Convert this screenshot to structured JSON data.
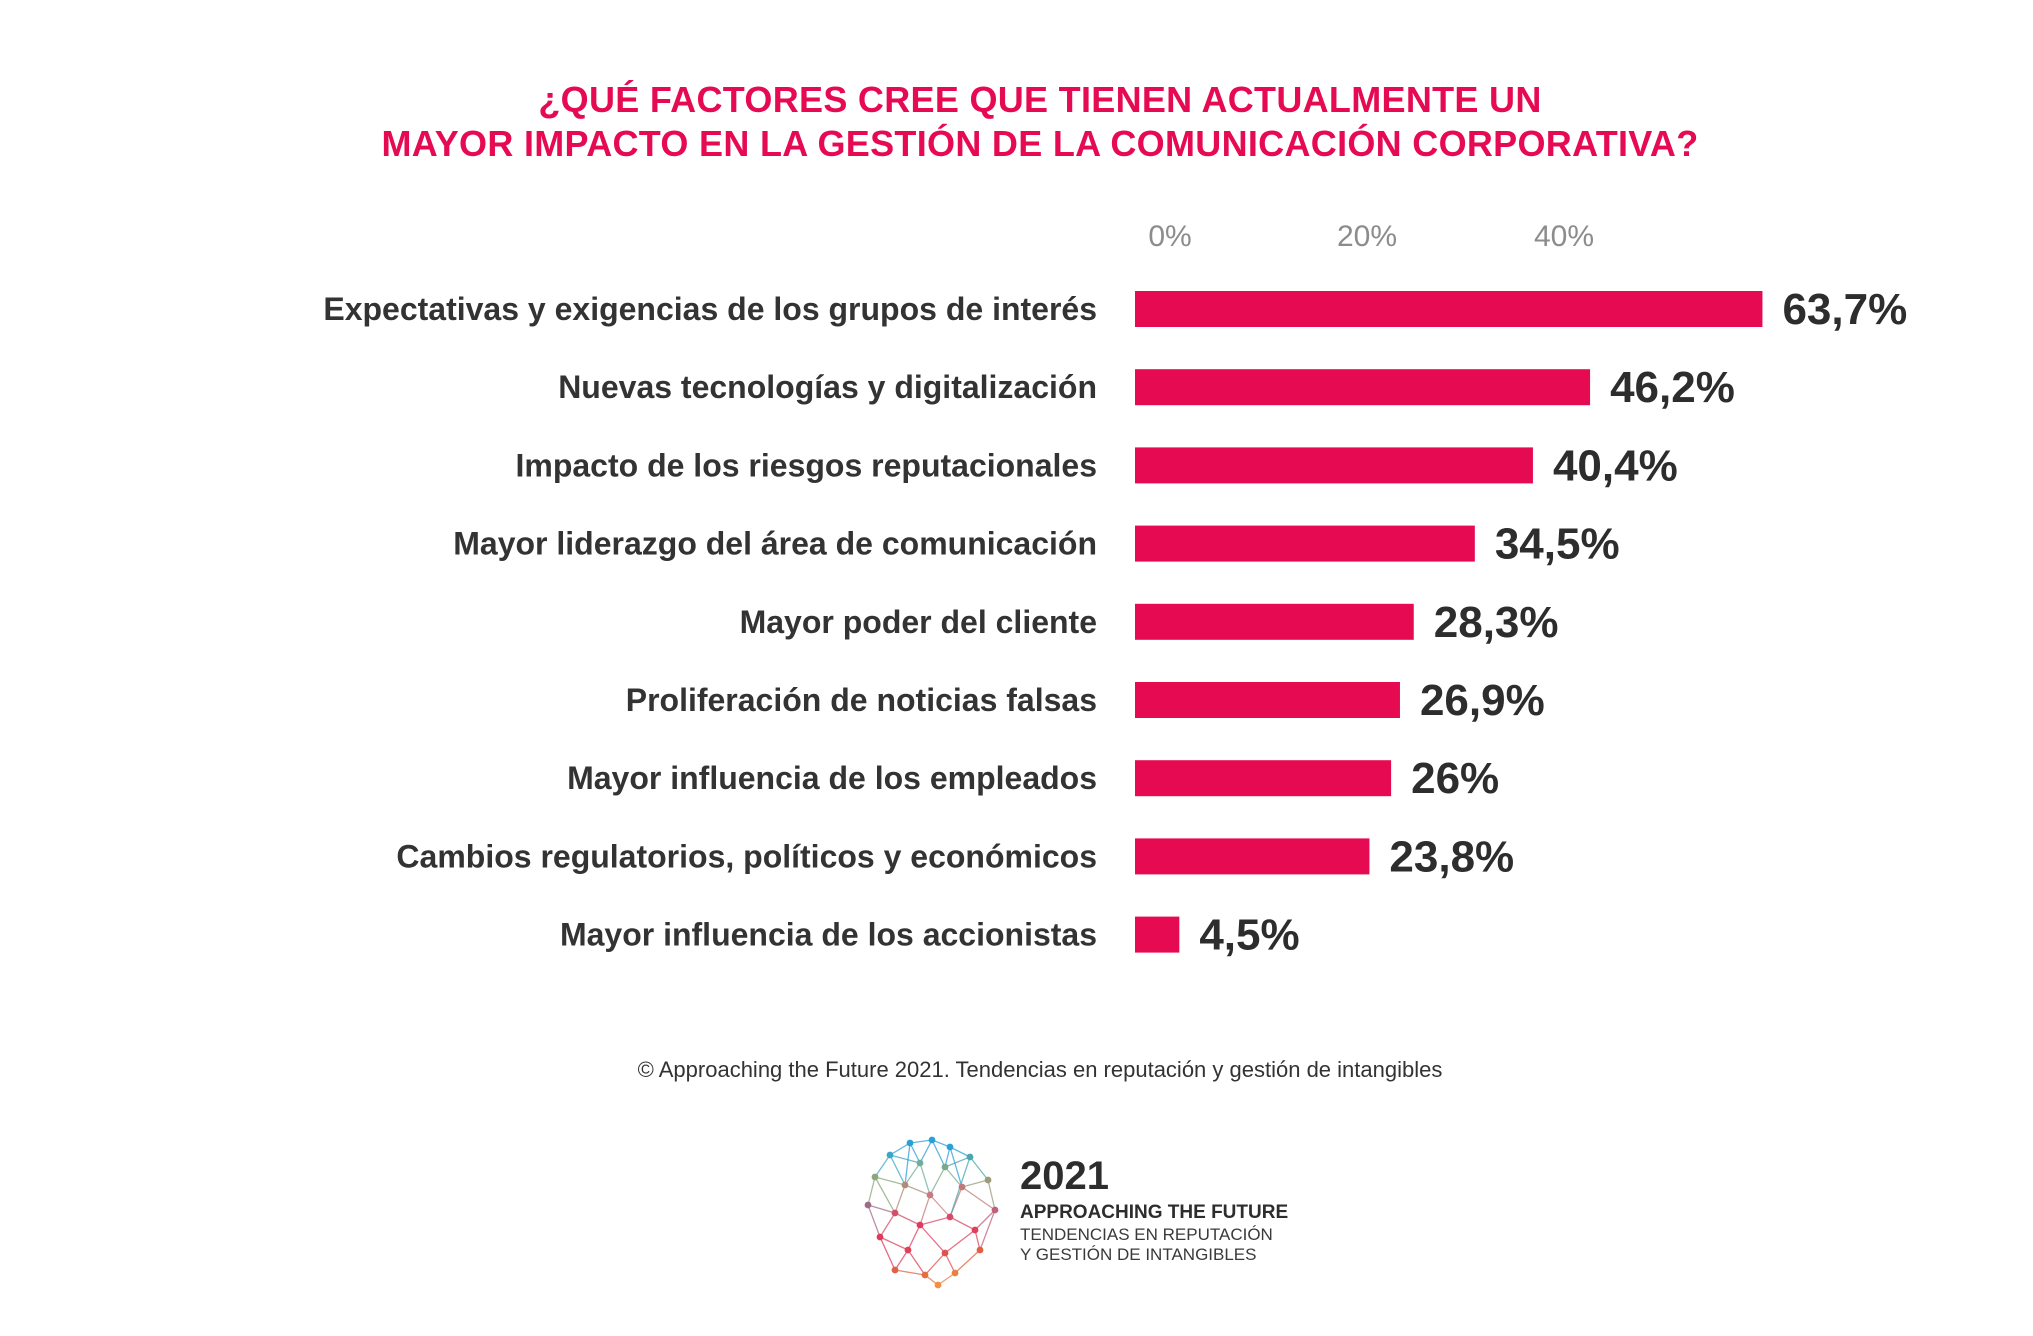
{
  "title": {
    "line1": "¿QUÉ FACTORES CREE QUE TIENEN ACTUALMENTE UN",
    "line2": "MAYOR IMPACTO EN LA GESTIÓN DE LA COMUNICACIÓN CORPORATIVA?"
  },
  "colors": {
    "bar": "#e60a53",
    "title": "#e60a53",
    "category_label": "#333333",
    "value_label": "#2d2d2d",
    "tick_label": "#8c8c8c"
  },
  "chart_data": {
    "type": "bar",
    "orientation": "horizontal",
    "title": "¿QUÉ FACTORES CREE QUE TIENEN ACTUALMENTE UN MAYOR IMPACTO EN LA GESTIÓN DE LA COMUNICACIÓN CORPORATIVA?",
    "categories": [
      "Expectativas y exigencias de los grupos de interés",
      "Nuevas tecnologías y digitalización",
      "Impacto de los riesgos reputacionales",
      "Mayor liderazgo del área de comunicación",
      "Mayor poder del cliente",
      "Proliferación de noticias falsas",
      "Mayor influencia de los empleados",
      "Cambios regulatorios, políticos y económicos",
      "Mayor influencia de los accionistas"
    ],
    "values": [
      63.7,
      46.2,
      40.4,
      34.5,
      28.3,
      26.9,
      26,
      23.8,
      4.5
    ],
    "value_labels": [
      "63,7%",
      "46,2%",
      "40,4%",
      "34,5%",
      "28,3%",
      "26,9%",
      "26%",
      "23,8%",
      "4,5%"
    ],
    "x_ticks": [
      0,
      20,
      40
    ],
    "x_tick_labels": [
      "0%",
      "20%",
      "40%"
    ],
    "xlim": [
      0,
      63.7
    ],
    "grid": false,
    "legend": "none"
  },
  "source": "© Approaching the Future 2021. Tendencias en reputación y gestión de intangibles",
  "logo": {
    "year": "2021",
    "name": "APPROACHING THE FUTURE",
    "sub_line1": "TENDENCIAS EN REPUTACIÓN",
    "sub_line2": "Y GESTIÓN DE INTANGIBLES",
    "icon": "network-globe-icon"
  }
}
